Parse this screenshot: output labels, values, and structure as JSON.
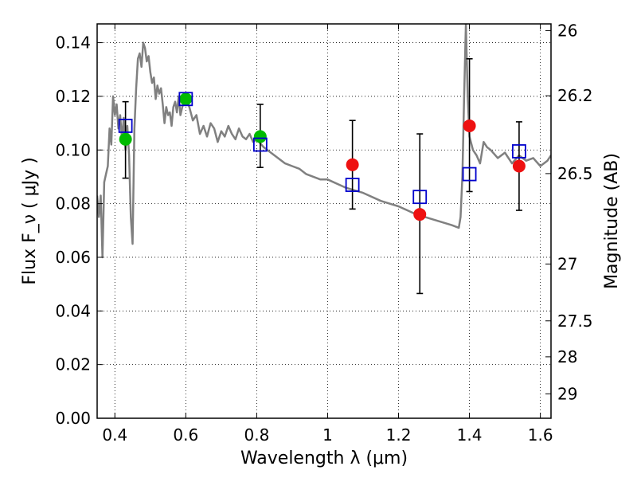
{
  "chart_data": {
    "type": "scatter",
    "xlabel": "Wavelength  λ (μm)",
    "ylabel_left": "Flux  F_ν  ( μJy )",
    "ylabel_right": "Magnitude (AB)",
    "xlim": [
      0.35,
      1.63
    ],
    "ylim": [
      0.0,
      0.147
    ],
    "grid": true,
    "x_ticks": [
      0.4,
      0.6,
      0.8,
      1.0,
      1.2,
      1.4,
      1.6
    ],
    "x_tick_labels": [
      "0.4",
      "0.6",
      "0.8",
      "1",
      "1.2",
      "1.4",
      "1.6"
    ],
    "y_ticks": [
      0.0,
      0.02,
      0.04,
      0.06,
      0.08,
      0.1,
      0.12,
      0.14
    ],
    "y_tick_labels": [
      "0.00",
      "0.02",
      "0.04",
      "0.06",
      "0.08",
      "0.10",
      "0.12",
      "0.14"
    ],
    "right_ticks": [
      {
        "label": "26",
        "flux": 0.1445
      },
      {
        "label": "26.2",
        "flux": 0.1202
      },
      {
        "label": "26.5",
        "flux": 0.0912
      },
      {
        "label": "27",
        "flux": 0.0575
      },
      {
        "label": "27.5",
        "flux": 0.0363
      },
      {
        "label": "28",
        "flux": 0.0229
      },
      {
        "label": "29",
        "flux": 0.0091
      }
    ],
    "series": [
      {
        "kind": "model-spectrum",
        "color": "#808080",
        "x": [
          0.35,
          0.355,
          0.36,
          0.365,
          0.37,
          0.375,
          0.38,
          0.385,
          0.39,
          0.395,
          0.4,
          0.405,
          0.41,
          0.415,
          0.42,
          0.425,
          0.43,
          0.435,
          0.44,
          0.445,
          0.45,
          0.455,
          0.46,
          0.465,
          0.47,
          0.475,
          0.48,
          0.485,
          0.49,
          0.495,
          0.5,
          0.505,
          0.51,
          0.515,
          0.52,
          0.525,
          0.53,
          0.535,
          0.54,
          0.545,
          0.55,
          0.555,
          0.56,
          0.565,
          0.57,
          0.575,
          0.58,
          0.585,
          0.59,
          0.595,
          0.6,
          0.61,
          0.62,
          0.63,
          0.64,
          0.65,
          0.66,
          0.67,
          0.68,
          0.69,
          0.7,
          0.71,
          0.72,
          0.73,
          0.74,
          0.75,
          0.76,
          0.77,
          0.78,
          0.79,
          0.8,
          0.82,
          0.84,
          0.86,
          0.88,
          0.9,
          0.92,
          0.94,
          0.96,
          0.98,
          1.0,
          1.05,
          1.1,
          1.15,
          1.2,
          1.25,
          1.3,
          1.35,
          1.37,
          1.375,
          1.38,
          1.385,
          1.39,
          1.395,
          1.4,
          1.41,
          1.42,
          1.43,
          1.44,
          1.45,
          1.46,
          1.48,
          1.5,
          1.52,
          1.54,
          1.56,
          1.58,
          1.6,
          1.62,
          1.63
        ],
        "y": [
          0.083,
          0.075,
          0.083,
          0.06,
          0.088,
          0.091,
          0.094,
          0.108,
          0.102,
          0.12,
          0.113,
          0.117,
          0.108,
          0.113,
          0.104,
          0.112,
          0.1,
          0.109,
          0.098,
          0.075,
          0.065,
          0.108,
          0.123,
          0.134,
          0.136,
          0.131,
          0.14,
          0.138,
          0.133,
          0.135,
          0.129,
          0.125,
          0.127,
          0.119,
          0.124,
          0.121,
          0.123,
          0.117,
          0.11,
          0.116,
          0.113,
          0.114,
          0.109,
          0.116,
          0.118,
          0.114,
          0.12,
          0.113,
          0.116,
          0.118,
          0.119,
          0.116,
          0.111,
          0.113,
          0.106,
          0.109,
          0.105,
          0.11,
          0.108,
          0.103,
          0.107,
          0.105,
          0.109,
          0.106,
          0.104,
          0.108,
          0.105,
          0.104,
          0.106,
          0.103,
          0.104,
          0.101,
          0.099,
          0.097,
          0.095,
          0.094,
          0.093,
          0.091,
          0.09,
          0.089,
          0.089,
          0.086,
          0.084,
          0.081,
          0.079,
          0.076,
          0.074,
          0.072,
          0.071,
          0.075,
          0.09,
          0.12,
          0.147,
          0.12,
          0.105,
          0.1,
          0.098,
          0.095,
          0.103,
          0.101,
          0.1,
          0.097,
          0.099,
          0.095,
          0.098,
          0.096,
          0.097,
          0.094,
          0.096,
          0.098
        ]
      },
      {
        "kind": "model-points",
        "marker": "open-square",
        "color": "#0000cc",
        "x": [
          0.43,
          0.6,
          0.81,
          1.07,
          1.26,
          1.4,
          1.54
        ],
        "y": [
          0.109,
          0.119,
          0.102,
          0.087,
          0.0825,
          0.091,
          0.0995
        ]
      },
      {
        "kind": "observed-points",
        "marker": "filled-circle",
        "color": "#00bb00",
        "x": [
          0.43,
          0.6,
          0.81
        ],
        "y": [
          0.104,
          0.119,
          0.105
        ]
      },
      {
        "kind": "observed-points",
        "marker": "filled-circle",
        "color": "#ee1111",
        "x": [
          1.07,
          1.26,
          1.4,
          1.54
        ],
        "y": [
          0.0945,
          0.076,
          0.109,
          0.094
        ]
      },
      {
        "kind": "error-bars",
        "color": "#000000",
        "x": [
          0.43,
          0.81,
          1.07,
          1.26,
          1.4,
          1.54
        ],
        "low": [
          0.0895,
          0.0935,
          0.078,
          0.0465,
          0.0845,
          0.0775
        ],
        "high": [
          0.118,
          0.117,
          0.111,
          0.106,
          0.134,
          0.1105
        ]
      }
    ]
  }
}
